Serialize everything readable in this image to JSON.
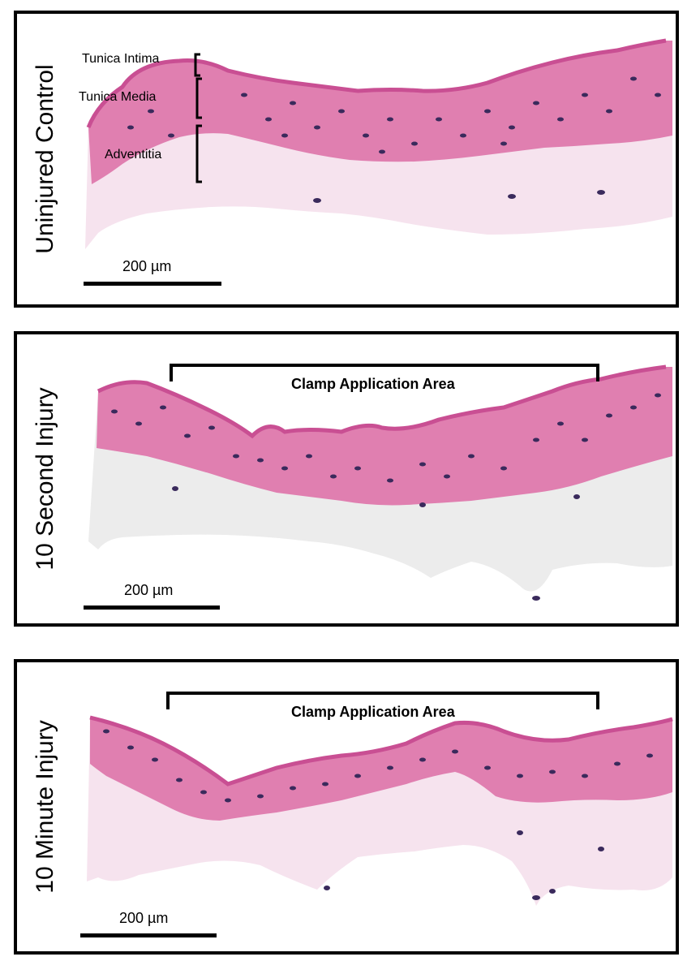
{
  "panels": [
    {
      "label": "Uninjured Control",
      "scale": "200 µm",
      "layers": {
        "intima": "Tunica Intima",
        "media": "Tunica Media",
        "adventitia": "Adventitia"
      }
    },
    {
      "label": "10 Second Injury",
      "scale": "200 µm",
      "clamp": "Clamp Application Area"
    },
    {
      "label": "10 Minute Injury",
      "scale": "200 µm",
      "clamp": "Clamp Application Area"
    }
  ],
  "colors": {
    "media": "#e07fb0",
    "adventitia": "#f6e3ee",
    "nuclei": "#3a2a5c",
    "border": "#000000"
  }
}
